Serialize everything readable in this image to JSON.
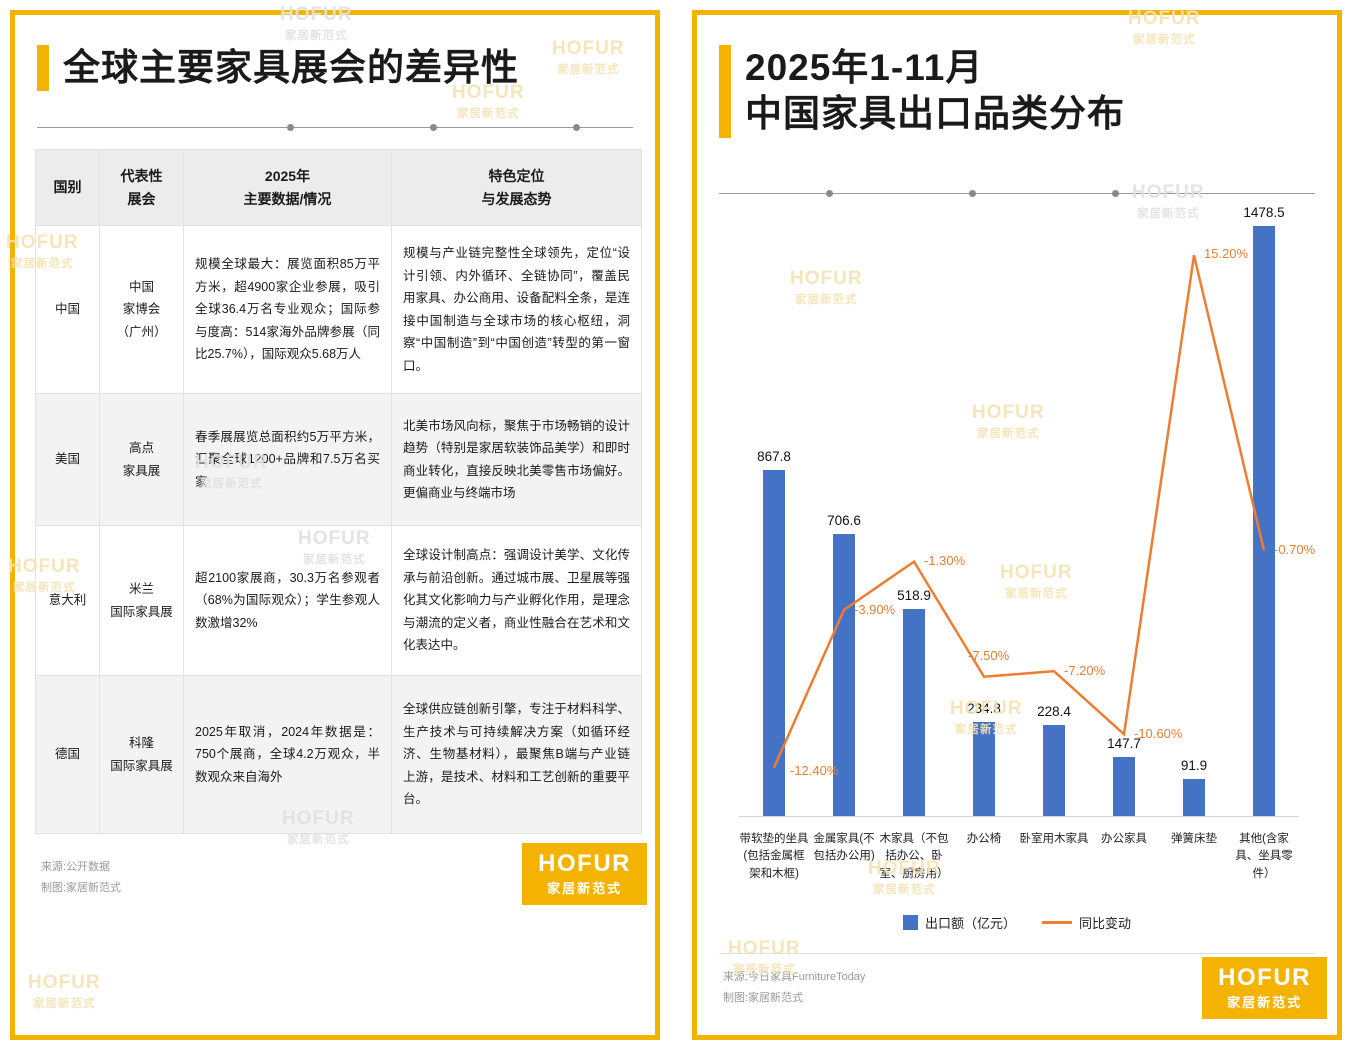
{
  "watermark": {
    "brand": "HOFUR",
    "sub": "家居新范式"
  },
  "colors": {
    "accent_yellow": "#F5B301",
    "bar_blue": "#4472C4",
    "line_orange": "#ED7D31"
  },
  "left_panel": {
    "title": "全球主要家具展会的差异性",
    "table": {
      "headers": [
        "国别",
        "代表性\n展会",
        "2025年\n主要数据/情况",
        "特色定位\n与发展态势"
      ],
      "rows": [
        {
          "country": "中国",
          "expo": "中国\n家博会\n（广州）",
          "data": "规模全球最大：展览面积85万平方米，超4900家企业参展，吸引全球36.4万名专业观众；国际参与度高：514家海外品牌参展（同比25.7%），国际观众5.68万人",
          "position": "规模与产业链完整性全球领先，定位“设计引领、内外循环、全链协同”，覆盖民用家具、办公商用、设备配料全条，是连接中国制造与全球市场的核心枢纽，洞察“中国制造”到“中国创造”转型的第一窗口。"
        },
        {
          "country": "美国",
          "expo": "高点\n家具展",
          "data": "春季展展览总面积约5万平方米，汇聚全球1200+品牌和7.5万名买家",
          "position": "北美市场风向标，聚焦于市场畅销的设计趋势（特别是家居软装饰品美学）和即时商业转化，直接反映北美零售市场偏好。更偏商业与终端市场"
        },
        {
          "country": "意大利",
          "expo": "米兰\n国际家具展",
          "data": "超2100家展商，30.3万名参观者（68%为国际观众）；学生参观人数激增32%",
          "position": "全球设计制高点：强调设计美学、文化传承与前沿创新。通过城市展、卫星展等强化其文化影响力与产业孵化作用，是理念与潮流的定义者，商业性融合在艺术和文化表达中。"
        },
        {
          "country": "德国",
          "expo": "科隆\n国际家具展",
          "data": "2025年取消，2024年数据是：750个展商，全球4.2万观众，半数观众来自海外",
          "position": "全球供应链创新引擎，专注于材料科学、生产技术与可持续解决方案（如循环经济、生物基材料），最聚焦B端与产业链上游，是技术、材料和工艺创新的重要平台。"
        }
      ]
    },
    "source": "来源:公开数据",
    "credit": "制图:家居新范式",
    "logo": {
      "brand": "HOFUR",
      "sub": "家居新范式"
    }
  },
  "right_panel": {
    "title_line1": "2025年1-11月",
    "title_line2": "中国家具出口品类分布",
    "legend": [
      {
        "label": "出口额（亿元）"
      },
      {
        "label": "同比变动"
      }
    ],
    "source": "来源:今日家具FurnitureToday",
    "credit": "制图:家居新范式",
    "logo": {
      "brand": "HOFUR",
      "sub": "家居新范式"
    }
  },
  "chart_data": {
    "type": "bar",
    "subtype": "bar-line-combo",
    "title": "2025年1-11月中国家具出口品类分布",
    "categories": [
      "带软垫的坐具(包括金属框架和木框)",
      "金属家具(不包括办公用)",
      "木家具（不包括办公、卧室、厨房用）",
      "办公椅",
      "卧室用木家具",
      "办公家具",
      "弹簧床垫",
      "其他(含家具、坐具零件）"
    ],
    "series": [
      {
        "name": "出口额（亿元）",
        "type": "bar",
        "color": "#4472C4",
        "values": [
          867.8,
          706.6,
          518.9,
          234.8,
          228.4,
          147.7,
          91.9,
          1478.5
        ]
      },
      {
        "name": "同比变动",
        "type": "line",
        "color": "#ED7D31",
        "unit": "%",
        "values": [
          -12.4,
          -3.9,
          -1.3,
          -7.5,
          -7.2,
          -10.6,
          15.2,
          -0.7
        ],
        "labels": [
          "-12.40%",
          "-3.90%",
          "-1.30%",
          "-7.50%",
          "-7.20%",
          "-10.60%",
          "15.20%",
          "-0.70%"
        ]
      }
    ],
    "bar_axis": [
      0,
      1550
    ],
    "pct_axis": [
      -15,
      17.8
    ],
    "grid": false,
    "legend_position": "bottom"
  }
}
